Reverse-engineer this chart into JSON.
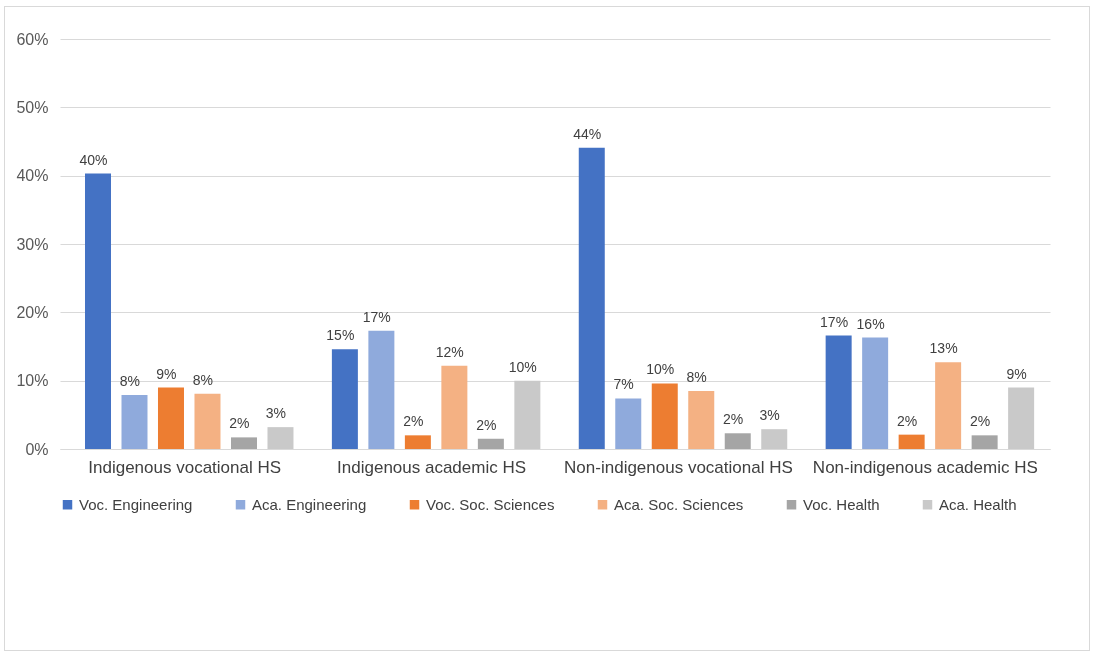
{
  "chart_data": {
    "type": "bar",
    "categories": [
      "Indigenous vocational HS",
      "Indigenous academic HS",
      "Non-indigenous vocational HS",
      "Non-indigenous academic HS"
    ],
    "series": [
      {
        "name": "Voc. Engineering",
        "color": "#4472c4",
        "values": [
          40.3,
          14.6,
          44.1,
          16.6
        ],
        "value_labels": [
          "40%",
          "15%",
          "44%",
          "17%"
        ]
      },
      {
        "name": "Aca. Engineering",
        "color": "#8faadc",
        "values": [
          7.9,
          17.3,
          7.4,
          16.3
        ],
        "value_labels": [
          "8%",
          "17%",
          "7%",
          "16%"
        ]
      },
      {
        "name": "Voc. Soc. Sciences",
        "color": "#ed7d31",
        "values": [
          9.0,
          2.0,
          9.6,
          2.1
        ],
        "value_labels": [
          "9%",
          "2%",
          "10%",
          "2%"
        ]
      },
      {
        "name": "Aca. Soc. Sciences",
        "color": "#f4b183",
        "values": [
          8.1,
          12.2,
          8.5,
          12.7
        ],
        "value_labels": [
          "8%",
          "12%",
          "8%",
          "13%"
        ]
      },
      {
        "name": "Voc. Health",
        "color": "#a5a5a5",
        "values": [
          1.7,
          1.5,
          2.3,
          2.0
        ],
        "value_labels": [
          "2%",
          "2%",
          "2%",
          "2%"
        ]
      },
      {
        "name": "Aca. Health",
        "color": "#c9c9c9",
        "values": [
          3.2,
          10.0,
          2.9,
          9.0
        ],
        "value_labels": [
          "3%",
          "10%",
          "3%",
          "9%"
        ]
      }
    ],
    "ylim": [
      0,
      60
    ],
    "yticks": [
      {
        "value": 0,
        "label": "0%"
      },
      {
        "value": 10,
        "label": "10%"
      },
      {
        "value": 20,
        "label": "20%"
      },
      {
        "value": 30,
        "label": "30%"
      },
      {
        "value": 40,
        "label": "40%"
      },
      {
        "value": 50,
        "label": "50%"
      },
      {
        "value": 60,
        "label": "60%"
      }
    ],
    "grid": "y",
    "legend": "bottom"
  }
}
